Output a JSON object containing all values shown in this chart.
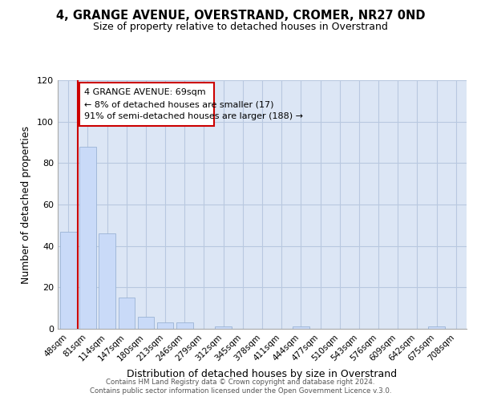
{
  "title": "4, GRANGE AVENUE, OVERSTRAND, CROMER, NR27 0ND",
  "subtitle": "Size of property relative to detached houses in Overstrand",
  "xlabel": "Distribution of detached houses by size in Overstrand",
  "ylabel": "Number of detached properties",
  "bar_labels": [
    "48sqm",
    "81sqm",
    "114sqm",
    "147sqm",
    "180sqm",
    "213sqm",
    "246sqm",
    "279sqm",
    "312sqm",
    "345sqm",
    "378sqm",
    "411sqm",
    "444sqm",
    "477sqm",
    "510sqm",
    "543sqm",
    "576sqm",
    "609sqm",
    "642sqm",
    "675sqm",
    "708sqm"
  ],
  "bar_values": [
    47,
    88,
    46,
    15,
    6,
    3,
    3,
    0,
    1,
    0,
    0,
    0,
    1,
    0,
    0,
    0,
    0,
    0,
    0,
    1,
    0
  ],
  "bar_color": "#c9daf8",
  "bar_edge_color": "#9ab3d5",
  "vline_x": 0.5,
  "vline_color": "#cc0000",
  "ylim": [
    0,
    120
  ],
  "yticks": [
    0,
    20,
    40,
    60,
    80,
    100,
    120
  ],
  "annotation_text_line1": "4 GRANGE AVENUE: 69sqm",
  "annotation_text_line2": "← 8% of detached houses are smaller (17)",
  "annotation_text_line3": "91% of semi-detached houses are larger (188) →",
  "footer_line1": "Contains HM Land Registry data © Crown copyright and database right 2024.",
  "footer_line2": "Contains public sector information licensed under the Open Government Licence v.3.0.",
  "background_color": "#ffffff",
  "plot_bg_color": "#dce6f5",
  "grid_color": "#b8c8e0",
  "title_fontsize": 10.5,
  "subtitle_fontsize": 9
}
